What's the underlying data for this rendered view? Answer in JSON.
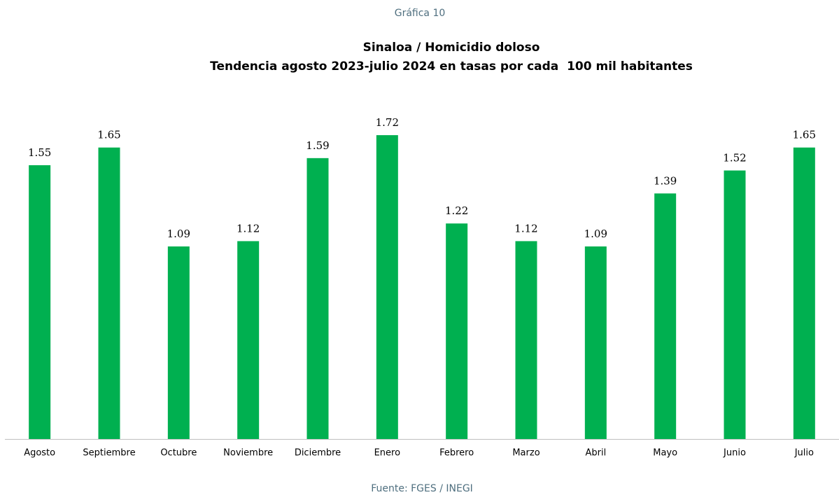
{
  "chart_data": {
    "type": "bar",
    "caption": "Gráfica 10",
    "title": "Sinaloa / Homicidio doloso",
    "subtitle": "Tendencia agosto 2023-julio 2024 en tasas por cada  100 mil habitantes",
    "source": "Fuente: FGES / INEGI",
    "categories": [
      "Agosto",
      "Septiembre",
      "Octubre",
      "Noviembre",
      "Diciembre",
      "Enero",
      "Febrero",
      "Marzo",
      "Abril",
      "Mayo",
      "Junio",
      "Julio"
    ],
    "values": [
      1.55,
      1.65,
      1.09,
      1.12,
      1.59,
      1.72,
      1.22,
      1.12,
      1.09,
      1.39,
      1.52,
      1.65
    ],
    "color": "#00b050",
    "ylim": [
      0,
      2
    ]
  }
}
